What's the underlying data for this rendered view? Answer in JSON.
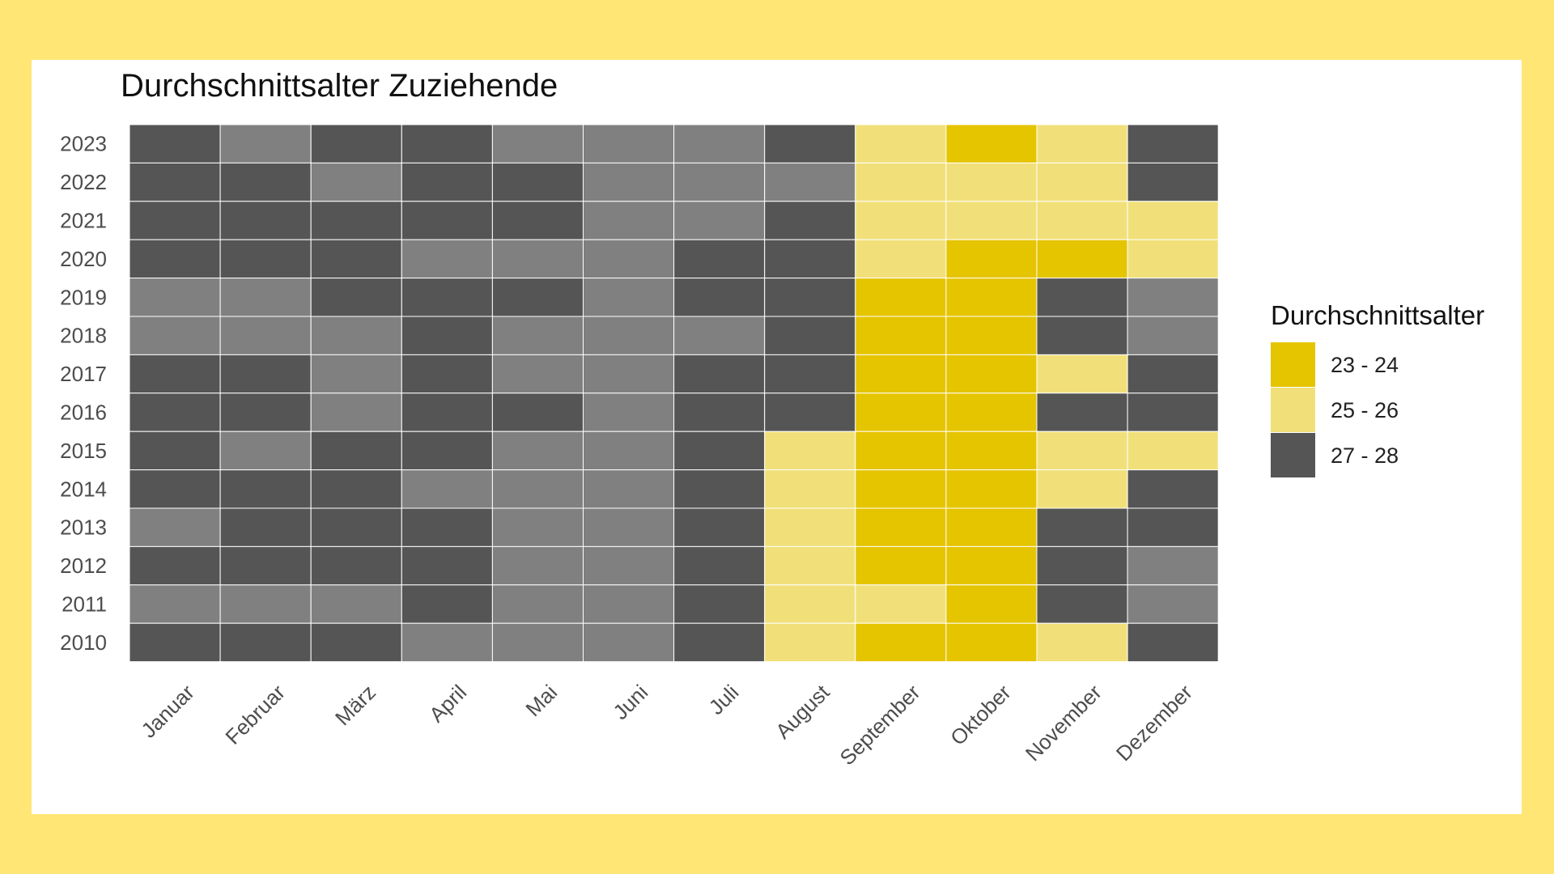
{
  "chart_data": {
    "type": "heatmap",
    "title": "Durchschnittsalter Zuziehende",
    "xlabel": "",
    "ylabel": "",
    "columns": [
      "Januar",
      "Februar",
      "März",
      "April",
      "Mai",
      "Juni",
      "Juli",
      "August",
      "September",
      "Oktober",
      "November",
      "Dezember"
    ],
    "rows": [
      "2023",
      "2022",
      "2021",
      "2020",
      "2019",
      "2018",
      "2017",
      "2016",
      "2015",
      "2014",
      "2013",
      "2012",
      "2011",
      "2010"
    ],
    "legend": {
      "title": "Durchschnittsalter",
      "placement": "right",
      "entries": [
        {
          "label": "23 - 24",
          "color": "#E5C400"
        },
        {
          "label": "25 - 26",
          "color": "#F1E07A"
        },
        {
          "label": "27 - 28",
          "color": "#555555"
        }
      ]
    },
    "unlabeled_color": "#808080",
    "values": [
      [
        "27 - 28",
        null,
        "27 - 28",
        "27 - 28",
        null,
        null,
        null,
        "27 - 28",
        "25 - 26",
        "23 - 24",
        "25 - 26",
        "27 - 28"
      ],
      [
        "27 - 28",
        "27 - 28",
        null,
        "27 - 28",
        "27 - 28",
        null,
        null,
        null,
        "25 - 26",
        "25 - 26",
        "25 - 26",
        "27 - 28"
      ],
      [
        "27 - 28",
        "27 - 28",
        "27 - 28",
        "27 - 28",
        "27 - 28",
        null,
        null,
        "27 - 28",
        "25 - 26",
        "25 - 26",
        "25 - 26",
        "25 - 26"
      ],
      [
        "27 - 28",
        "27 - 28",
        "27 - 28",
        null,
        null,
        null,
        "27 - 28",
        "27 - 28",
        "25 - 26",
        "23 - 24",
        "23 - 24",
        "25 - 26"
      ],
      [
        null,
        null,
        "27 - 28",
        "27 - 28",
        "27 - 28",
        null,
        "27 - 28",
        "27 - 28",
        "23 - 24",
        "23 - 24",
        "27 - 28",
        null
      ],
      [
        null,
        null,
        null,
        "27 - 28",
        null,
        null,
        null,
        "27 - 28",
        "23 - 24",
        "23 - 24",
        "27 - 28",
        null
      ],
      [
        "27 - 28",
        "27 - 28",
        null,
        "27 - 28",
        null,
        null,
        "27 - 28",
        "27 - 28",
        "23 - 24",
        "23 - 24",
        "25 - 26",
        "27 - 28"
      ],
      [
        "27 - 28",
        "27 - 28",
        null,
        "27 - 28",
        "27 - 28",
        null,
        "27 - 28",
        "27 - 28",
        "23 - 24",
        "23 - 24",
        "27 - 28",
        "27 - 28"
      ],
      [
        "27 - 28",
        null,
        "27 - 28",
        "27 - 28",
        null,
        null,
        "27 - 28",
        "25 - 26",
        "23 - 24",
        "23 - 24",
        "25 - 26",
        "25 - 26"
      ],
      [
        "27 - 28",
        "27 - 28",
        "27 - 28",
        null,
        null,
        null,
        "27 - 28",
        "25 - 26",
        "23 - 24",
        "23 - 24",
        "25 - 26",
        "27 - 28"
      ],
      [
        null,
        "27 - 28",
        "27 - 28",
        "27 - 28",
        null,
        null,
        "27 - 28",
        "25 - 26",
        "23 - 24",
        "23 - 24",
        "27 - 28",
        "27 - 28"
      ],
      [
        "27 - 28",
        "27 - 28",
        "27 - 28",
        "27 - 28",
        null,
        null,
        "27 - 28",
        "25 - 26",
        "23 - 24",
        "23 - 24",
        "27 - 28",
        null
      ],
      [
        null,
        null,
        null,
        "27 - 28",
        null,
        null,
        "27 - 28",
        "25 - 26",
        "25 - 26",
        "23 - 24",
        "27 - 28",
        null
      ],
      [
        "27 - 28",
        "27 - 28",
        "27 - 28",
        null,
        null,
        null,
        "27 - 28",
        "25 - 26",
        "23 - 24",
        "23 - 24",
        "25 - 26",
        "27 - 28"
      ]
    ]
  }
}
